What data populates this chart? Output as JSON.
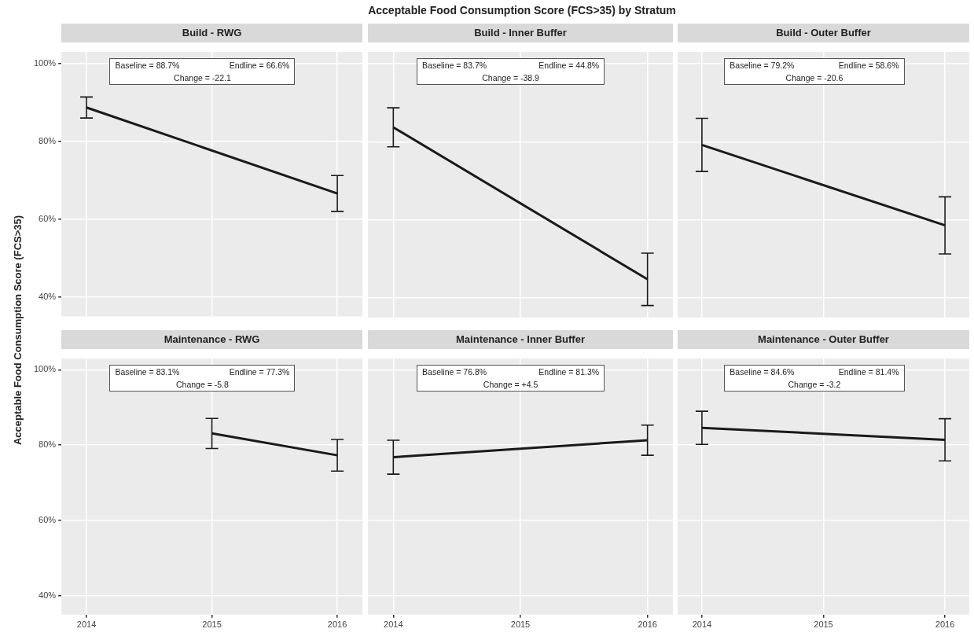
{
  "chart_data": [
    {
      "type": "line",
      "ylabel": "Acceptable Food Consumption Score (FCS>35)",
      "subtitle": "Build - RWG",
      "x": [
        2014,
        2016
      ],
      "values": [
        88.7,
        66.6
      ],
      "errors": [
        2.7,
        4.6
      ],
      "color": "#1a1a1a",
      "annotations": [
        "Baseline = 88.7%",
        "Endline = 66.6%",
        "Change = -22.1"
      ],
      "xlim": [
        2013.8,
        2016.2
      ],
      "ylim": [
        35,
        103
      ],
      "xticks": [
        2014,
        2015,
        2016
      ],
      "yticks": [
        {
          "value": 40,
          "label": "40%"
        },
        {
          "value": 60,
          "label": "60%"
        },
        {
          "value": 80,
          "label": "80%"
        },
        {
          "value": 100,
          "label": "100%"
        }
      ],
      "grid": true,
      "tick_labels": "y"
    },
    {
      "type": "line",
      "title": "Acceptable Food Consumption Score (FCS>35) by Stratum",
      "subtitle": "Build - Inner Buffer",
      "x": [
        2014,
        2016
      ],
      "values": [
        83.7,
        44.8
      ],
      "errors": [
        5,
        6.7
      ],
      "color": "#1a1a1a",
      "annotations": [
        "Baseline = 83.7%",
        "Endline = 44.8%",
        "Change = -38.9"
      ],
      "xlim": [
        2013.8,
        2016.2
      ],
      "ylim": [
        35,
        103
      ],
      "xticks": [
        2014,
        2015,
        2016
      ],
      "yticks": [
        40,
        60,
        80,
        100
      ],
      "grid": true,
      "tick_labels": false
    },
    {
      "type": "line",
      "subtitle": "Build - Outer Buffer",
      "x": [
        2014,
        2016
      ],
      "values": [
        79.2,
        58.6
      ],
      "errors": [
        6.8,
        7.3
      ],
      "color": "#1a1a1a",
      "annotations": [
        "Baseline = 79.2%",
        "Endline = 58.6%",
        "Change = -20.6"
      ],
      "xlim": [
        2013.8,
        2016.2
      ],
      "ylim": [
        35,
        103
      ],
      "xticks": [
        2014,
        2015,
        2016
      ],
      "yticks": [
        40,
        60,
        80,
        100
      ],
      "grid": true,
      "tick_labels": false
    },
    {
      "type": "line",
      "subtitle": "Maintenance - RWG",
      "x": [
        2015,
        2016
      ],
      "values": [
        83.1,
        77.3
      ],
      "errors": [
        4,
        4.2
      ],
      "color": "#1a1a1a",
      "annotations": [
        "Baseline = 83.1%",
        "Endline = 77.3%",
        "Change = -5.8"
      ],
      "xlim": [
        2013.8,
        2016.2
      ],
      "ylim": [
        35,
        103
      ],
      "xticks": [
        2014,
        2015,
        2016
      ],
      "yticks": [
        {
          "value": 40,
          "label": "40%"
        },
        {
          "value": 60,
          "label": "60%"
        },
        {
          "value": 80,
          "label": "80%"
        },
        {
          "value": 100,
          "label": "100%"
        }
      ],
      "grid": true
    },
    {
      "type": "line",
      "subtitle": "Maintenance - Inner Buffer",
      "x": [
        2014,
        2016
      ],
      "values": [
        76.8,
        81.3
      ],
      "errors": [
        4.5,
        4
      ],
      "color": "#1a1a1a",
      "annotations": [
        "Baseline = 76.8%",
        "Endline = 81.3%",
        "Change = +4.5"
      ],
      "xlim": [
        2013.8,
        2016.2
      ],
      "ylim": [
        35,
        103
      ],
      "xticks": [
        2014,
        2015,
        2016
      ],
      "yticks": [
        40,
        60,
        80,
        100
      ],
      "grid": true,
      "tick_labels": "x"
    },
    {
      "type": "line",
      "subtitle": "Maintenance - Outer Buffer",
      "x": [
        2014,
        2016
      ],
      "values": [
        84.6,
        81.4
      ],
      "errors": [
        4.4,
        5.6
      ],
      "color": "#1a1a1a",
      "annotations": [
        "Baseline = 84.6%",
        "Endline = 81.4%",
        "Change = -3.2"
      ],
      "xlim": [
        2013.8,
        2016.2
      ],
      "ylim": [
        35,
        103
      ],
      "xticks": [
        2014,
        2015,
        2016
      ],
      "yticks": [
        40,
        60,
        80,
        100
      ],
      "grid": true,
      "tick_labels": "x"
    }
  ]
}
